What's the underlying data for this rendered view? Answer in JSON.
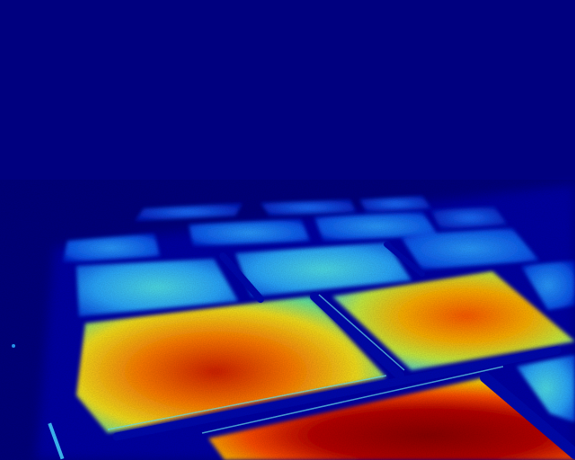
{
  "image": {
    "kind": "thermal false-color aerial view of field plots",
    "colormap": "jet",
    "palette": {
      "background": "#00007f",
      "cold": "#0000d8",
      "cool": "#0a6cff",
      "mild": "#3fd7ff",
      "warm": "#f7e31c",
      "hot": "#ff5a00",
      "hottest": "#9b0000"
    }
  }
}
